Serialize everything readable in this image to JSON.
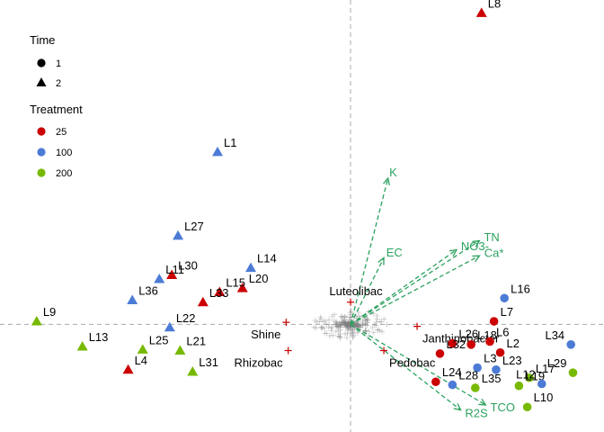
{
  "chart_data": {
    "type": "scatter",
    "title": "",
    "xlabel": "",
    "ylabel": "",
    "xlim": [
      -1.6,
      1.15
    ],
    "ylim": [
      -1.05,
      3.2
    ],
    "grid": false,
    "reference_lines": {
      "x": 0,
      "y": 0
    },
    "legend_placement": "top-left",
    "legends": [
      {
        "title": "Time",
        "entries": [
          {
            "label": "1",
            "shape": "circle"
          },
          {
            "label": "2",
            "shape": "triangle"
          }
        ]
      },
      {
        "title": "Treatment",
        "entries": [
          {
            "label": "25",
            "color": "#cc0000"
          },
          {
            "label": "100",
            "color": "#4c7bd6"
          },
          {
            "label": "200",
            "color": "#77b900"
          }
        ]
      }
    ],
    "colors": {
      "25": "#cc0000",
      "100": "#4c7bd6",
      "200": "#77b900",
      "vector": "#2ca25f",
      "taxa": "#7f7f7f",
      "taxa_highlight": "#cc0000"
    },
    "samples": [
      {
        "label": "L1",
        "x": -0.64,
        "y": 1.71,
        "time": "2",
        "treatment": "100"
      },
      {
        "label": "L8",
        "x": 0.63,
        "y": 3.09,
        "time": "2",
        "treatment": "25"
      },
      {
        "label": "L27",
        "x": -0.83,
        "y": 0.88,
        "time": "2",
        "treatment": "100"
      },
      {
        "label": "L14",
        "x": -0.48,
        "y": 0.56,
        "time": "2",
        "treatment": "100"
      },
      {
        "label": "L30",
        "x": -0.86,
        "y": 0.49,
        "time": "2",
        "treatment": "25"
      },
      {
        "label": "L20",
        "x": -0.52,
        "y": 0.36,
        "time": "2",
        "treatment": "25"
      },
      {
        "label": "L11",
        "x": -0.92,
        "y": 0.45,
        "time": "2",
        "treatment": "100"
      },
      {
        "label": "L15",
        "x": -0.63,
        "y": 0.32,
        "time": "2",
        "treatment": "25"
      },
      {
        "label": "L36",
        "x": -1.05,
        "y": 0.24,
        "time": "2",
        "treatment": "100"
      },
      {
        "label": "L33",
        "x": -0.71,
        "y": 0.22,
        "time": "2",
        "treatment": "25"
      },
      {
        "label": "L9",
        "x": -1.51,
        "y": 0.03,
        "time": "2",
        "treatment": "200"
      },
      {
        "label": "L22",
        "x": -0.87,
        "y": -0.03,
        "time": "2",
        "treatment": "100"
      },
      {
        "label": "L13",
        "x": -1.29,
        "y": -0.22,
        "time": "2",
        "treatment": "200"
      },
      {
        "label": "L25",
        "x": -1.0,
        "y": -0.25,
        "time": "2",
        "treatment": "200"
      },
      {
        "label": "L21",
        "x": -0.82,
        "y": -0.26,
        "time": "2",
        "treatment": "200"
      },
      {
        "label": "L4",
        "x": -1.07,
        "y": -0.45,
        "time": "2",
        "treatment": "25"
      },
      {
        "label": "L31",
        "x": -0.76,
        "y": -0.47,
        "time": "2",
        "treatment": "200"
      },
      {
        "label": "L16",
        "x": 0.74,
        "y": 0.26,
        "time": "1",
        "treatment": "100"
      },
      {
        "label": "L7",
        "x": 0.69,
        "y": 0.03,
        "time": "1",
        "treatment": "25"
      },
      {
        "label": "L26",
        "x": 0.49,
        "y": -0.19,
        "time": "1",
        "treatment": "25"
      },
      {
        "label": "L18",
        "x": 0.58,
        "y": -0.2,
        "time": "1",
        "treatment": "25"
      },
      {
        "label": "L6",
        "x": 0.67,
        "y": -0.17,
        "time": "1",
        "treatment": "25"
      },
      {
        "label": "L32",
        "x": 0.43,
        "y": -0.29,
        "time": "1",
        "treatment": "25"
      },
      {
        "label": "L2",
        "x": 0.72,
        "y": -0.28,
        "time": "1",
        "treatment": "25"
      },
      {
        "label": "L34",
        "x": 1.06,
        "y": -0.2,
        "time": "1",
        "treatment": "100"
      },
      {
        "label": "L24",
        "x": 0.41,
        "y": -0.57,
        "time": "1",
        "treatment": "25"
      },
      {
        "label": "L3",
        "x": 0.61,
        "y": -0.43,
        "time": "1",
        "treatment": "100"
      },
      {
        "label": "L23",
        "x": 0.7,
        "y": -0.45,
        "time": "1",
        "treatment": "100"
      },
      {
        "label": "L29",
        "x": 1.07,
        "y": -0.48,
        "time": "1",
        "treatment": "200"
      },
      {
        "label": "L17",
        "x": 0.86,
        "y": -0.53,
        "time": "1",
        "treatment": "200"
      },
      {
        "label": "L28",
        "x": 0.49,
        "y": -0.6,
        "time": "1",
        "treatment": "100"
      },
      {
        "label": "L35",
        "x": 0.6,
        "y": -0.63,
        "time": "1",
        "treatment": "200"
      },
      {
        "label": "L19",
        "x": 0.81,
        "y": -0.61,
        "time": "1",
        "treatment": "200"
      },
      {
        "label": "L12",
        "x": 0.92,
        "y": -0.59,
        "time": "1",
        "treatment": "100"
      },
      {
        "label": "L10",
        "x": 0.85,
        "y": -0.82,
        "time": "1",
        "treatment": "200"
      }
    ],
    "vectors": [
      {
        "label": "K",
        "x": 0.18,
        "y": 1.45
      },
      {
        "label": "TN",
        "x": 0.62,
        "y": 0.83
      },
      {
        "label": "Ca*",
        "x": 0.62,
        "y": 0.68
      },
      {
        "label": "NO3-",
        "x": 0.51,
        "y": 0.74
      },
      {
        "label": "EC",
        "x": 0.16,
        "y": 0.66
      },
      {
        "label": "R2S",
        "x": 0.53,
        "y": -0.85
      },
      {
        "label": "TCO",
        "x": 0.65,
        "y": -0.8
      }
    ],
    "taxa_labels": [
      {
        "label": "Luteolibac",
        "x": 0.0,
        "y": 0.22
      },
      {
        "label": "Shine",
        "x": -0.31,
        "y": 0.02
      },
      {
        "label": "Janthinobacter",
        "x": 0.32,
        "y": -0.02
      },
      {
        "label": "Rhizobac",
        "x": -0.3,
        "y": -0.26
      },
      {
        "label": "Pedobac",
        "x": 0.16,
        "y": -0.26
      }
    ]
  }
}
